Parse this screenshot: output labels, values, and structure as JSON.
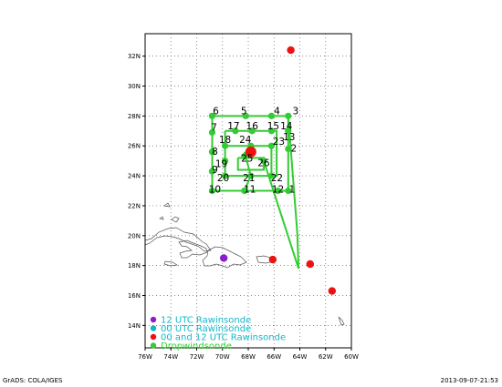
{
  "chart_data": {
    "type": "scatter",
    "map": true,
    "xlim": [
      -76,
      -60
    ],
    "ylim": [
      12.5,
      33.5
    ],
    "grid": true,
    "x_tick_labels": [
      "76W",
      "74W",
      "72W",
      "70W",
      "68W",
      "66W",
      "64W",
      "62W",
      "60W"
    ],
    "y_tick_labels": [
      "14N",
      "16N",
      "18N",
      "20N",
      "22N",
      "24N",
      "26N",
      "28N",
      "30N",
      "32N"
    ],
    "series": [
      {
        "name": "12 UTC Rawinsonde",
        "color": "#8a1ec8",
        "points": [
          [
            -69.9,
            18.5
          ]
        ]
      },
      {
        "name": "00 UTC Rawinsonde",
        "color": "#11b8c8",
        "points": []
      },
      {
        "name": "00 and 12 UTC Rawinsonde",
        "color": "#ee1111",
        "points": [
          [
            -64.7,
            32.4
          ],
          [
            -66.1,
            18.4
          ],
          [
            -63.2,
            18.1
          ],
          [
            -61.5,
            16.3
          ],
          [
            -67.8,
            25.6
          ]
        ]
      },
      {
        "name": "Dropwindsonde",
        "color": "#33cc33",
        "points": [
          {
            "label": "3",
            "x": -64.9,
            "y": 28.0
          },
          {
            "label": "4",
            "x": -66.2,
            "y": 28.0
          },
          {
            "label": "5",
            "x": -68.2,
            "y": 28.0
          },
          {
            "label": "6",
            "x": -70.8,
            "y": 28.0
          },
          {
            "label": "7",
            "x": -70.8,
            "y": 26.9
          },
          {
            "label": "8",
            "x": -70.8,
            "y": 25.6
          },
          {
            "label": "9",
            "x": -70.8,
            "y": 24.3
          },
          {
            "label": "10",
            "x": -70.8,
            "y": 23.0
          },
          {
            "label": "11",
            "x": -68.3,
            "y": 23.0
          },
          {
            "label": "12",
            "x": -65.7,
            "y": 23.0
          },
          {
            "label": "1",
            "x": -64.9,
            "y": 23.0
          },
          {
            "label": "2",
            "x": -64.9,
            "y": 25.8
          },
          {
            "label": "13",
            "x": -64.9,
            "y": 27.0
          },
          {
            "label": "14",
            "x": -64.9,
            "y": 27.0
          },
          {
            "label": "15",
            "x": -66.2,
            "y": 27.0
          },
          {
            "label": "16",
            "x": -67.7,
            "y": 27.0
          },
          {
            "label": "17",
            "x": -69.0,
            "y": 27.0
          },
          {
            "label": "18",
            "x": -69.8,
            "y": 26.0
          },
          {
            "label": "19",
            "x": -69.8,
            "y": 25.0
          },
          {
            "label": "20",
            "x": -69.8,
            "y": 24.0
          },
          {
            "label": "21",
            "x": -67.8,
            "y": 24.0
          },
          {
            "label": "22",
            "x": -66.2,
            "y": 24.0
          },
          {
            "label": "23",
            "x": -66.2,
            "y": 26.0
          },
          {
            "label": "24",
            "x": -67.8,
            "y": 26.0
          },
          {
            "label": "25",
            "x": -68.3,
            "y": 25.3
          },
          {
            "label": "26",
            "x": -66.8,
            "y": 25.0
          }
        ]
      }
    ],
    "legend_position": "bottom-left"
  },
  "footer": {
    "left": "GrADS: COLA/IGES",
    "right": "2013-09-07-21:53"
  }
}
